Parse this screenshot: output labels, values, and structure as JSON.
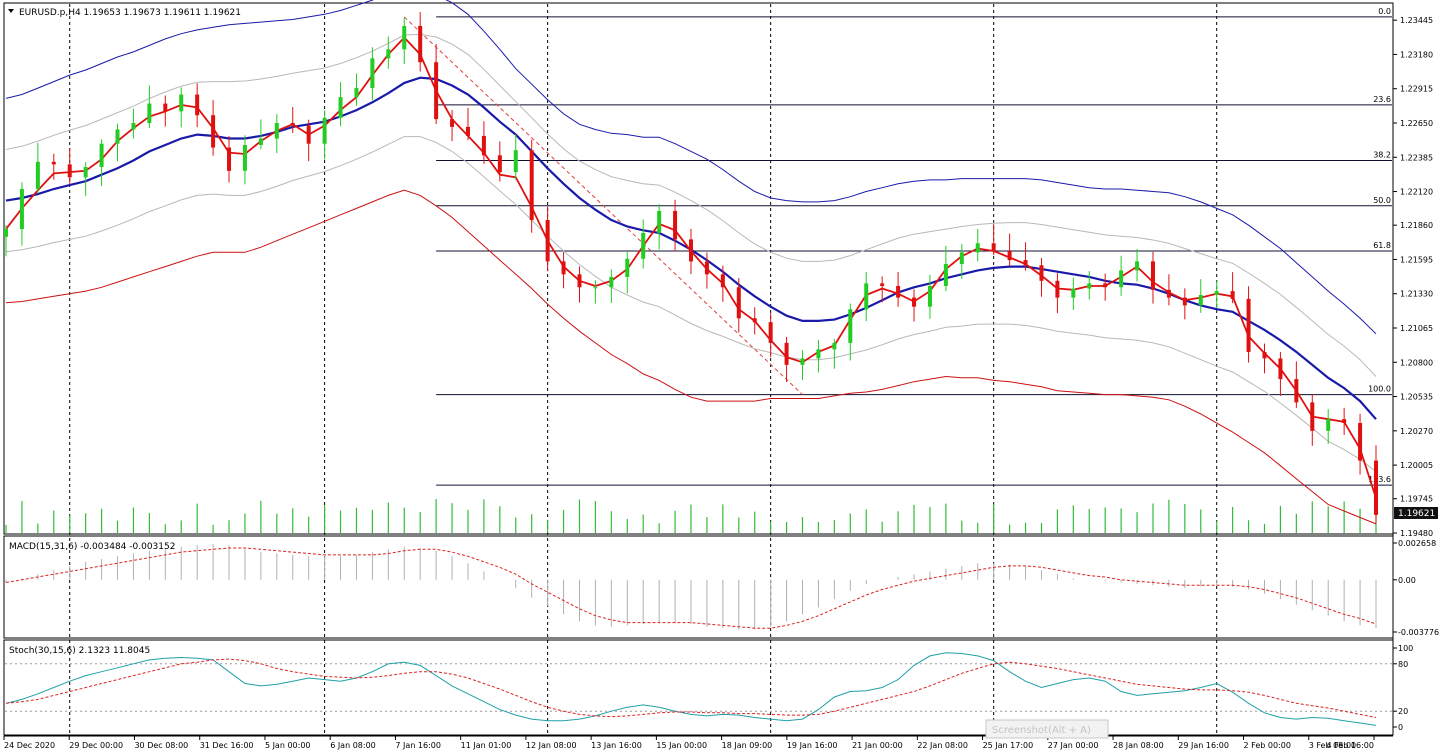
{
  "chart_data": {
    "type": "line",
    "main": {
      "header": "EURUSD.p,H4  1.19653 1.19673 1.19611 1.19621",
      "symbol": "EURUSD.p",
      "timeframe": "H4",
      "ohlc": [
        1.19653,
        1.19673,
        1.19611,
        1.19621
      ],
      "price_axis": {
        "min": 1.1948,
        "max": 1.2357,
        "ticks": [
          "1.23445",
          "1.23180",
          "1.22915",
          "1.22650",
          "1.22385",
          "1.22120",
          "1.21860",
          "1.21595",
          "1.21330",
          "1.21065",
          "1.20800",
          "1.20535",
          "1.20270",
          "1.20005",
          "1.19745",
          "1.19480"
        ]
      },
      "current_price": "1.19621",
      "fibonacci": {
        "levels": [
          {
            "label": "0.0",
            "price": 1.2347
          },
          {
            "label": "23.6",
            "price": 1.2279
          },
          {
            "label": "38.2",
            "price": 1.2236
          },
          {
            "label": "50.0",
            "price": 1.2201
          },
          {
            "label": "61.8",
            "price": 1.2166
          },
          {
            "label": "100.0",
            "price": 1.2055
          },
          {
            "label": "123.6",
            "price": 1.1985
          }
        ]
      },
      "series": {
        "close": [
          1.2183,
          1.2214,
          1.2235,
          1.2233,
          1.2223,
          1.2231,
          1.2249,
          1.226,
          1.2265,
          1.228,
          1.2274,
          1.2287,
          1.2271,
          1.2246,
          1.2228,
          1.2248,
          1.2253,
          1.2265,
          1.2263,
          1.2249,
          1.2269,
          1.2285,
          1.2292,
          1.2315,
          1.2322,
          1.234,
          1.2312,
          1.2268,
          1.2262,
          1.2255,
          1.224,
          1.2227,
          1.2244,
          1.219,
          1.2158,
          1.2148,
          1.2138,
          1.2138,
          1.2146,
          1.216,
          1.218,
          1.2197,
          1.2175,
          1.2158,
          1.2148,
          1.2138,
          1.2114,
          1.2111,
          1.2095,
          1.2078,
          1.2083,
          1.209,
          1.2095,
          1.2121,
          1.2141,
          1.2139,
          1.213,
          1.2123,
          1.2139,
          1.2156,
          1.2165,
          1.2172,
          1.2166,
          1.2159,
          1.2155,
          1.2143,
          1.213,
          1.2137,
          1.2141,
          1.2138,
          1.2151,
          1.2158,
          1.2136,
          1.213,
          1.2124,
          1.2132,
          1.2135,
          1.2129,
          1.2088,
          1.2083,
          1.2067,
          1.2049,
          1.2027,
          1.2036,
          1.2033,
          1.2004,
          1.1962
        ],
        "red_ma": [
          1.2183,
          1.2199,
          1.2213,
          1.2226,
          1.2227,
          1.2228,
          1.2237,
          1.2251,
          1.2261,
          1.227,
          1.2274,
          1.2279,
          1.2277,
          1.2261,
          1.2242,
          1.2241,
          1.2251,
          1.2259,
          1.2264,
          1.2256,
          1.2263,
          1.2275,
          1.2285,
          1.2302,
          1.2318,
          1.2331,
          1.2318,
          1.229,
          1.2268,
          1.2255,
          1.2242,
          1.2225,
          1.2223,
          1.22,
          1.2174,
          1.2154,
          1.2143,
          1.2139,
          1.2143,
          1.2152,
          1.217,
          1.2187,
          1.2182,
          1.2166,
          1.2152,
          1.2141,
          1.2121,
          1.2112,
          1.2097,
          1.2084,
          1.208,
          1.2088,
          1.2093,
          1.2113,
          1.2132,
          1.2137,
          1.2133,
          1.2127,
          1.2135,
          1.2152,
          1.2162,
          1.2168,
          1.2166,
          1.2161,
          1.2156,
          1.2147,
          1.2137,
          1.2136,
          1.2139,
          1.2139,
          1.2146,
          1.2154,
          1.2142,
          1.2134,
          1.2128,
          1.213,
          1.2133,
          1.2131,
          1.21,
          1.2087,
          1.2075,
          1.2058,
          1.2038,
          1.2036,
          1.2034,
          1.2013,
          1.1975
        ],
        "blue_ma": [
          1.2205,
          1.2207,
          1.221,
          1.2214,
          1.2217,
          1.222,
          1.2225,
          1.223,
          1.2236,
          1.2243,
          1.2248,
          1.2253,
          1.2256,
          1.2255,
          1.2253,
          1.2253,
          1.2255,
          1.2258,
          1.2262,
          1.2264,
          1.2266,
          1.227,
          1.2275,
          1.2281,
          1.2288,
          1.2296,
          1.23,
          1.2299,
          1.2294,
          1.2287,
          1.2277,
          1.2266,
          1.2256,
          1.2243,
          1.223,
          1.2218,
          1.2207,
          1.2198,
          1.219,
          1.2185,
          1.2182,
          1.218,
          1.2174,
          1.2167,
          1.2159,
          1.215,
          1.214,
          1.2131,
          1.2123,
          1.2116,
          1.2112,
          1.2112,
          1.2113,
          1.2117,
          1.2122,
          1.2128,
          1.2134,
          1.2138,
          1.2141,
          1.2145,
          1.2148,
          1.2151,
          1.2153,
          1.2154,
          1.2154,
          1.2152,
          1.215,
          1.2148,
          1.2146,
          1.2143,
          1.2141,
          1.214,
          1.2137,
          1.2133,
          1.2128,
          1.2124,
          1.2121,
          1.2119,
          1.2112,
          1.2105,
          1.2097,
          1.2088,
          1.2078,
          1.2068,
          1.206,
          1.205,
          1.2036
        ],
        "env_upper": [
          1.2284,
          1.2287,
          1.2292,
          1.2297,
          1.2302,
          1.2306,
          1.2311,
          1.2316,
          1.232,
          1.2325,
          1.233,
          1.2334,
          1.2337,
          1.2339,
          1.2341,
          1.2342,
          1.2343,
          1.2344,
          1.2345,
          1.2347,
          1.2349,
          1.2352,
          1.2356,
          1.236,
          1.2365,
          1.237,
          1.2367,
          1.2364,
          1.2358,
          1.2349,
          1.2336,
          1.2322,
          1.2307,
          1.2295,
          1.2283,
          1.2272,
          1.2264,
          1.226,
          1.2257,
          1.2256,
          1.2254,
          1.2254,
          1.2249,
          1.2243,
          1.2237,
          1.2229,
          1.222,
          1.2212,
          1.2207,
          1.2205,
          1.2204,
          1.2204,
          1.2205,
          1.2208,
          1.2212,
          1.2215,
          1.2218,
          1.222,
          1.2221,
          1.2221,
          1.2222,
          1.2222,
          1.2222,
          1.2222,
          1.2222,
          1.2221,
          1.2219,
          1.2217,
          1.2215,
          1.2214,
          1.2214,
          1.2213,
          1.2212,
          1.2211,
          1.2208,
          1.2204,
          1.2199,
          1.2194,
          1.2186,
          1.2177,
          1.2168,
          1.2157,
          1.2146,
          1.2135,
          1.2125,
          1.2114,
          1.2102
        ],
        "env_lower": [
          1.2126,
          1.2127,
          1.2129,
          1.2131,
          1.2133,
          1.2135,
          1.2138,
          1.2142,
          1.2146,
          1.215,
          1.2154,
          1.2158,
          1.2162,
          1.2165,
          1.2165,
          1.2165,
          1.2169,
          1.2174,
          1.2179,
          1.2184,
          1.2189,
          1.2194,
          1.2199,
          1.2204,
          1.2209,
          1.2213,
          1.2209,
          1.2201,
          1.2192,
          1.2181,
          1.217,
          1.2159,
          1.2148,
          1.2137,
          1.2125,
          1.2114,
          1.2104,
          1.2095,
          1.2086,
          1.2079,
          1.2071,
          1.2066,
          1.2059,
          1.2053,
          1.205,
          1.205,
          1.205,
          1.205,
          1.2052,
          1.2052,
          1.2052,
          1.2052,
          1.2054,
          1.2056,
          1.2057,
          1.2059,
          1.2062,
          1.2065,
          1.2067,
          1.2069,
          1.2068,
          1.2068,
          1.2066,
          1.2065,
          1.2063,
          1.2061,
          1.2058,
          1.2057,
          1.2056,
          1.2055,
          1.2055,
          1.2054,
          1.2053,
          1.2051,
          1.2046,
          1.204,
          1.2033,
          1.2026,
          1.2018,
          1.201,
          1.2,
          1.199,
          1.198,
          1.197,
          1.1965,
          1.196,
          1.1955
        ]
      },
      "x_axis_labels": [
        "24 Dec 2020",
        "29 Dec 00:00",
        "30 Dec 08:00",
        "31 Dec 16:00",
        "5 Jan 00:00",
        "6 Jan 08:00",
        "7 Jan 16:00",
        "11 Jan 01:00",
        "12 Jan 08:00",
        "13 Jan 16:00",
        "15 Jan 00:00",
        "18 Jan 09:00",
        "19 Jan 16:00",
        "21 Jan 00:00",
        "22 Jan 08:00",
        "25 Jan 17:00",
        "27 Jan 00:00",
        "28 Jan 08:00",
        "29 Jan 16:00",
        "2 Feb 00:00",
        "3 Feb 08:00",
        "4 Feb 16:00"
      ]
    },
    "macd": {
      "header": "MACD(15,31,6) -0.003484 -0.003152",
      "ticks": [
        "0.002658",
        "0.00",
        "-0.003776"
      ],
      "range": [
        -0.003776,
        0.002658
      ],
      "histogram": [
        -0.0002,
        0.0001,
        0.0004,
        0.0007,
        0.001,
        0.0013,
        0.0015,
        0.0017,
        0.0019,
        0.0021,
        0.0023,
        0.0024,
        0.0025,
        0.0026,
        0.0025,
        0.0022,
        0.002,
        0.0019,
        0.0018,
        0.0017,
        0.0017,
        0.0017,
        0.0018,
        0.002,
        0.0022,
        0.0024,
        0.0023,
        0.0021,
        0.0017,
        0.0012,
        0.0006,
        0.0,
        -0.0006,
        -0.0013,
        -0.0019,
        -0.0025,
        -0.003,
        -0.0033,
        -0.0034,
        -0.0033,
        -0.0032,
        -0.0031,
        -0.0031,
        -0.0032,
        -0.0034,
        -0.0035,
        -0.0036,
        -0.0036,
        -0.0034,
        -0.003,
        -0.0025,
        -0.002,
        -0.0014,
        -0.0008,
        -0.0003,
        0.0,
        0.0002,
        0.0004,
        0.0006,
        0.0008,
        0.001,
        0.0012,
        0.0012,
        0.0011,
        0.001,
        0.0007,
        0.0004,
        0.0001,
        0.0,
        -0.0001,
        -0.0002,
        -0.0003,
        -0.0004,
        -0.0005,
        -0.0006,
        -0.0005,
        -0.0004,
        -0.0005,
        -0.0007,
        -0.001,
        -0.0014,
        -0.0018,
        -0.0022,
        -0.0026,
        -0.003,
        -0.0033,
        -0.0035
      ],
      "signal": [
        -0.0002,
        0.0,
        0.0002,
        0.0004,
        0.0006,
        0.0008,
        0.001,
        0.0012,
        0.0014,
        0.0016,
        0.0018,
        0.002,
        0.0021,
        0.0022,
        0.0023,
        0.0023,
        0.0022,
        0.0021,
        0.002,
        0.0019,
        0.0018,
        0.0018,
        0.0018,
        0.0018,
        0.0019,
        0.0021,
        0.0022,
        0.0022,
        0.002,
        0.0017,
        0.0013,
        0.0009,
        0.0004,
        -0.0003,
        -0.0009,
        -0.0015,
        -0.0021,
        -0.0026,
        -0.0029,
        -0.0031,
        -0.0031,
        -0.0031,
        -0.0031,
        -0.0031,
        -0.0032,
        -0.0033,
        -0.0034,
        -0.0035,
        -0.0035,
        -0.0033,
        -0.003,
        -0.0026,
        -0.0021,
        -0.0016,
        -0.0011,
        -0.0007,
        -0.0004,
        -0.0001,
        0.0001,
        0.0003,
        0.0005,
        0.0007,
        0.0009,
        0.001,
        0.001,
        0.0009,
        0.0007,
        0.0005,
        0.0003,
        0.0002,
        0.0,
        -0.0001,
        -0.0002,
        -0.0003,
        -0.0004,
        -0.0004,
        -0.0004,
        -0.0004,
        -0.0005,
        -0.0007,
        -0.001,
        -0.0013,
        -0.0017,
        -0.0021,
        -0.0025,
        -0.0028,
        -0.0032
      ]
    },
    "stoch": {
      "header": "Stoch(30,15,6) 2.1323 11.8045",
      "ticks": [
        "100",
        "80",
        "20",
        "0"
      ],
      "range": [
        0,
        100
      ],
      "main_line": [
        30,
        35,
        42,
        50,
        58,
        65,
        70,
        75,
        80,
        85,
        87,
        88,
        87,
        85,
        70,
        55,
        52,
        54,
        58,
        62,
        60,
        58,
        62,
        70,
        80,
        82,
        78,
        65,
        52,
        42,
        32,
        22,
        15,
        10,
        8,
        8,
        10,
        14,
        20,
        25,
        28,
        25,
        20,
        16,
        14,
        16,
        15,
        12,
        10,
        8,
        10,
        22,
        38,
        45,
        46,
        50,
        60,
        78,
        90,
        94,
        93,
        90,
        84,
        70,
        58,
        50,
        55,
        60,
        62,
        58,
        45,
        40,
        42,
        44,
        46,
        50,
        55,
        44,
        30,
        18,
        12,
        10,
        12,
        11,
        8,
        5,
        2
      ],
      "signal_line": [
        30,
        32,
        35,
        40,
        45,
        50,
        55,
        60,
        65,
        70,
        75,
        80,
        82,
        85,
        86,
        84,
        80,
        74,
        70,
        67,
        64,
        63,
        62,
        63,
        65,
        68,
        70,
        70,
        67,
        62,
        55,
        48,
        40,
        32,
        25,
        20,
        16,
        14,
        13,
        14,
        16,
        18,
        19,
        19,
        18,
        18,
        17,
        17,
        16,
        15,
        15,
        16,
        20,
        25,
        30,
        35,
        40,
        45,
        52,
        60,
        68,
        74,
        80,
        82,
        80,
        77,
        74,
        70,
        66,
        62,
        58,
        54,
        52,
        50,
        48,
        47,
        47,
        46,
        44,
        40,
        35,
        30,
        27,
        24,
        20,
        16,
        12
      ]
    }
  },
  "watermark": "Screenshot(Alt + A)",
  "colors": {
    "bull_candle": "#22cc22",
    "bear_candle": "#e01010",
    "red_ma": "#e01010",
    "blue_ma": "#1a1aaa",
    "envelope_upper": "#1a1aaa",
    "envelope_lower": "#cc1111",
    "grey_band": "#b8b8b8",
    "volume": "#33bb33",
    "fib_line": "#101030",
    "macd_signal": "#dd2222",
    "stoch_main": "#20a0a8",
    "stoch_signal": "#dd2222"
  }
}
